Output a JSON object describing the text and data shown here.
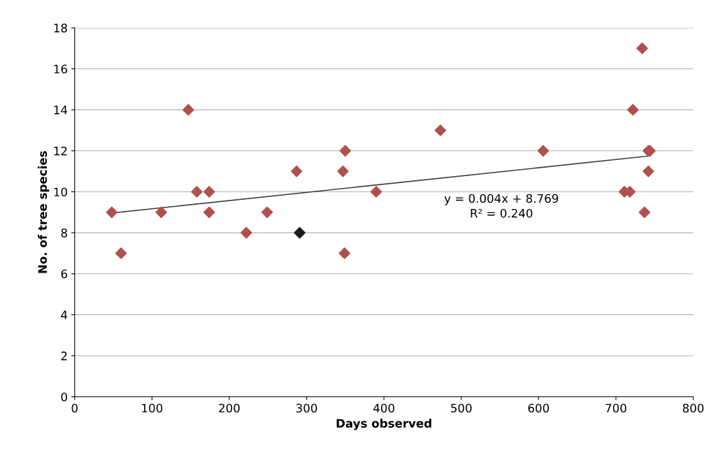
{
  "chart_data": {
    "type": "scatter",
    "xlabel": "Days observed",
    "ylabel": "No. of tree species",
    "xlim": [
      0,
      800
    ],
    "xticks": [
      0,
      100,
      200,
      300,
      400,
      500,
      600,
      700,
      800
    ],
    "ylim": [
      0,
      18
    ],
    "yticks": [
      0,
      2,
      4,
      6,
      8,
      10,
      12,
      14,
      16,
      18
    ],
    "grid": "y",
    "marker": "diamond",
    "series": [
      {
        "color": "#b0504d",
        "x": [
          48,
          60,
          112,
          147,
          158,
          174,
          174,
          222,
          249,
          287,
          347,
          350,
          349,
          390,
          473,
          606,
          711,
          718,
          722,
          734,
          737,
          742,
          744,
          742
        ],
        "values": [
          9,
          7,
          9,
          14,
          10,
          10,
          9,
          8,
          9,
          11,
          11,
          12,
          7,
          10,
          13,
          12,
          10,
          10,
          14,
          17,
          9,
          12,
          12,
          11
        ]
      },
      {
        "color": "#1a1a1a",
        "x": [
          291
        ],
        "values": [
          8
        ]
      },
      {
        "type": "line",
        "color": "#404040",
        "marker": "none",
        "x": [
          48,
          744
        ],
        "values": [
          8.96,
          11.75
        ]
      }
    ],
    "annotations": [
      "y = 0.004x + 8.769",
      "R² = 0.240"
    ]
  }
}
